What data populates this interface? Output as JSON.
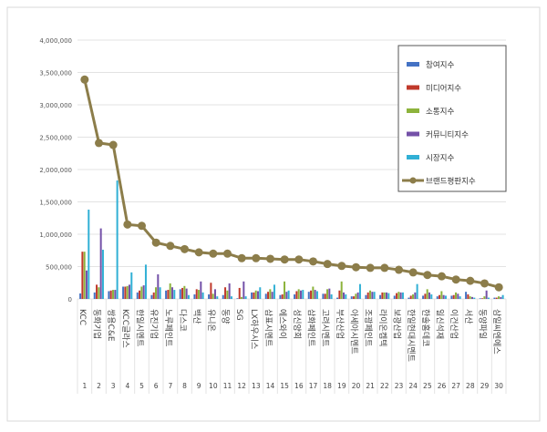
{
  "chart_data": {
    "type": "bar",
    "title": "",
    "xlabel": "",
    "ylabel": "",
    "ylim": [
      0,
      4000000
    ],
    "yticks": [
      "0",
      "500,000",
      "1,000,000",
      "1,500,000",
      "2,000,000",
      "2,500,000",
      "3,000,000",
      "3,500,000",
      "4,000,000"
    ],
    "grid": true,
    "legend_position": "top-right",
    "categories": [
      "KCC",
      "동화기업",
      "쌍용C&E",
      "KCC글라스",
      "한일시멘트",
      "유진기업",
      "노루페인트",
      "다스코",
      "백산",
      "유니온",
      "동양",
      "SG",
      "LX하우시스",
      "삼표시멘트",
      "에스와이",
      "성신양회",
      "삼화페인트",
      "고려시멘트",
      "부산산업",
      "아세아시멘트",
      "조광페인트",
      "라이온켐텍",
      "보광산업",
      "한일현대시멘트",
      "한솔홈데코",
      "일신석재",
      "이건산업",
      "서산",
      "동양파일",
      "삼일씨엔에스"
    ],
    "ranks": [
      "1",
      "2",
      "3",
      "4",
      "5",
      "6",
      "7",
      "8",
      "9",
      "10",
      "11",
      "12",
      "13",
      "14",
      "15",
      "16",
      "17",
      "18",
      "19",
      "20",
      "21",
      "22",
      "23",
      "24",
      "25",
      "26",
      "27",
      "28",
      "29",
      "30"
    ],
    "series": [
      {
        "name": "참여지수",
        "type": "bar",
        "color": "#4472c4",
        "values": [
          85000,
          100000,
          120000,
          190000,
          100000,
          60000,
          130000,
          150000,
          70000,
          70000,
          60000,
          10000,
          100000,
          80000,
          60000,
          70000,
          110000,
          80000,
          20000,
          40000,
          60000,
          60000,
          50000,
          20000,
          50000,
          40000,
          50000,
          110000,
          10000,
          20000
        ]
      },
      {
        "name": "미디어지수",
        "type": "bar",
        "color": "#c0392b",
        "values": [
          730000,
          220000,
          130000,
          190000,
          130000,
          100000,
          140000,
          170000,
          150000,
          250000,
          180000,
          170000,
          100000,
          110000,
          70000,
          120000,
          130000,
          80000,
          130000,
          40000,
          100000,
          100000,
          90000,
          50000,
          80000,
          60000,
          60000,
          70000,
          10000,
          20000
        ]
      },
      {
        "name": "소통지수",
        "type": "bar",
        "color": "#8db33c",
        "values": [
          730000,
          180000,
          140000,
          200000,
          190000,
          180000,
          240000,
          200000,
          140000,
          80000,
          130000,
          30000,
          130000,
          150000,
          270000,
          150000,
          190000,
          150000,
          270000,
          80000,
          130000,
          100000,
          110000,
          70000,
          150000,
          120000,
          100000,
          40000,
          40000,
          40000
        ]
      },
      {
        "name": "커뮤니티지수",
        "type": "bar",
        "color": "#7451a8",
        "values": [
          440000,
          1090000,
          140000,
          220000,
          210000,
          380000,
          180000,
          160000,
          270000,
          150000,
          240000,
          270000,
          120000,
          110000,
          110000,
          130000,
          140000,
          160000,
          100000,
          100000,
          110000,
          100000,
          100000,
          100000,
          100000,
          60000,
          80000,
          30000,
          130000,
          30000
        ]
      },
      {
        "name": "시장지수",
        "type": "bar",
        "color": "#31b0d5",
        "values": [
          1380000,
          760000,
          1830000,
          410000,
          530000,
          180000,
          140000,
          60000,
          100000,
          40000,
          40000,
          40000,
          180000,
          220000,
          130000,
          140000,
          120000,
          70000,
          70000,
          230000,
          110000,
          90000,
          100000,
          230000,
          70000,
          50000,
          40000,
          20000,
          20000,
          60000
        ]
      },
      {
        "name": "브랜드평판지수",
        "type": "line",
        "color": "#8c7d4a",
        "values": [
          3390000,
          2410000,
          2380000,
          1150000,
          1130000,
          870000,
          820000,
          770000,
          720000,
          700000,
          700000,
          630000,
          630000,
          620000,
          610000,
          610000,
          580000,
          540000,
          510000,
          490000,
          480000,
          480000,
          450000,
          410000,
          370000,
          350000,
          300000,
          280000,
          240000,
          180000
        ]
      }
    ]
  }
}
